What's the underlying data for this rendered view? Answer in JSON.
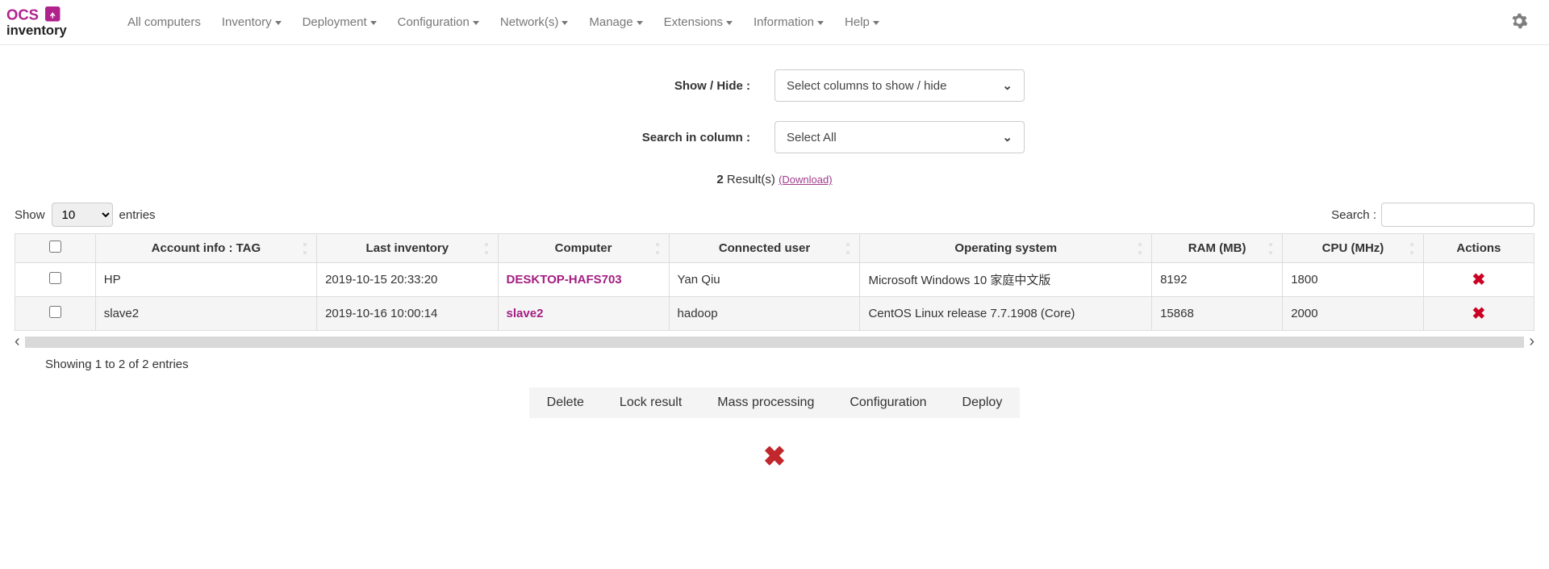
{
  "nav": {
    "items": [
      {
        "label": "All computers",
        "dropdown": false
      },
      {
        "label": "Inventory",
        "dropdown": true
      },
      {
        "label": "Deployment",
        "dropdown": true
      },
      {
        "label": "Configuration",
        "dropdown": true
      },
      {
        "label": "Network(s)",
        "dropdown": true
      },
      {
        "label": "Manage",
        "dropdown": true
      },
      {
        "label": "Extensions",
        "dropdown": true
      },
      {
        "label": "Information",
        "dropdown": true
      },
      {
        "label": "Help",
        "dropdown": true
      }
    ]
  },
  "filters": {
    "show_hide_label": "Show / Hide :",
    "show_hide_value": "Select columns to show / hide",
    "search_col_label": "Search in column :",
    "search_col_value": "Select All"
  },
  "results": {
    "count": "2",
    "label": " Result(s) ",
    "download": "(Download)"
  },
  "length": {
    "show_label": "Show",
    "value": "10",
    "entries_label": "entries"
  },
  "search": {
    "label": "Search :",
    "value": ""
  },
  "table": {
    "columns": [
      "Account info : TAG",
      "Last inventory",
      "Computer",
      "Connected user",
      "Operating system",
      "RAM (MB)",
      "CPU (MHz)",
      "Actions"
    ],
    "rows": [
      {
        "tag": "HP",
        "last": "2019-10-15 20:33:20",
        "computer": "DESKTOP-HAFS703",
        "user": "Yan Qiu",
        "os": "Microsoft Windows 10 家庭中文版",
        "ram": "8192",
        "cpu": "1800"
      },
      {
        "tag": "slave2",
        "last": "2019-10-16 10:00:14",
        "computer": "slave2",
        "user": "hadoop",
        "os": "CentOS Linux release 7.7.1908 (Core)",
        "ram": "15868",
        "cpu": "2000"
      }
    ]
  },
  "showing": "Showing 1 to 2 of 2 entries",
  "mass_actions": [
    "Delete",
    "Lock result",
    "Mass processing",
    "Configuration",
    "Deploy"
  ],
  "colors": {
    "accent": "#a41e82"
  }
}
